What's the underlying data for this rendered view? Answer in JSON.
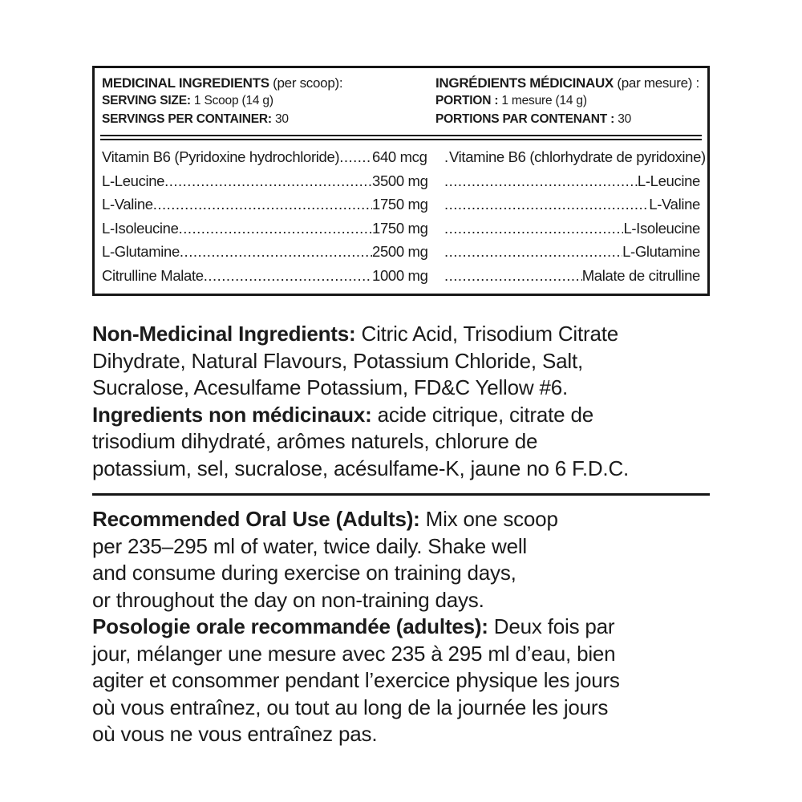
{
  "panel": {
    "header": {
      "en": {
        "title_bold": "MEDICINAL INGREDIENTS",
        "title_rest": " (per scoop):",
        "serving_size_label": "SERVING SIZE:",
        "serving_size_value": " 1 Scoop (14 g)",
        "servings_label": "SERVINGS PER CONTAINER:",
        "servings_value": " 30"
      },
      "fr": {
        "title_bold": "INGRÉDIENTS MÉDICINAUX",
        "title_rest": " (par mesure) :",
        "serving_size_label": "PORTION :",
        "serving_size_value": " 1 mesure (14 g)",
        "servings_label": "PORTIONS PAR CONTENANT :",
        "servings_value": " 30"
      }
    },
    "table": {
      "rows": [
        {
          "en": "Vitamin B6 (Pyridoxine hydrochloride)",
          "amount": "640 mcg",
          "fr": "Vitamine B6 (chlorhydrate de pyridoxine)"
        },
        {
          "en": "L-Leucine",
          "amount": "3500 mg",
          "fr": "L-Leucine"
        },
        {
          "en": "L-Valine",
          "amount": "1750 mg",
          "fr": "L-Valine"
        },
        {
          "en": "L-Isoleucine",
          "amount": "1750 mg",
          "fr": "L-Isoleucine"
        },
        {
          "en": "L-Glutamine",
          "amount": "2500 mg",
          "fr": "L-Glutamine"
        },
        {
          "en": "Citrulline Malate",
          "amount": "1000 mg",
          "fr": "Malate de citrulline"
        }
      ]
    }
  },
  "paragraphs": [
    {
      "id": "non-medicinal",
      "lines": [
        [
          {
            "t": "Non-Medicinal Ingredients:",
            "b": true
          },
          {
            "t": " Citric Acid, Trisodium Citrate"
          }
        ],
        [
          {
            "t": "Dihydrate, Natural Flavours, Potassium Chloride, Salt,"
          }
        ],
        [
          {
            "t": "Sucralose, Acesulfame Potassium, FD&C Yellow #6."
          }
        ],
        [
          {
            "t": "Ingredients non médicinaux:",
            "b": true
          },
          {
            "t": " acide citrique, citrate de"
          }
        ],
        [
          {
            "t": "trisodium dihydraté, arômes naturels, chlorure de"
          }
        ],
        [
          {
            "t": "potassium, sel, sucralose, acésulfame-K, jaune no 6 F.D.C."
          }
        ]
      ]
    },
    {
      "id": "oral-use",
      "lines": [
        [
          {
            "t": "Recommended Oral Use (Adults):",
            "b": true
          },
          {
            "t": " Mix one scoop"
          }
        ],
        [
          {
            "t": "per 235–295 ml of water, twice daily. Shake well"
          }
        ],
        [
          {
            "t": "and consume during exercise on training days,"
          }
        ],
        [
          {
            "t": "or throughout the day on non-training days."
          }
        ],
        [
          {
            "t": "Posologie orale recommandée (adultes):",
            "b": true
          },
          {
            "t": " Deux fois par"
          }
        ],
        [
          {
            "t": "jour, mélanger une mesure avec 235 à 295 ml d’eau, bien"
          }
        ],
        [
          {
            "t": "agiter et consommer pendant l’exercice physique les jours"
          }
        ],
        [
          {
            "t": "où vous entraînez, ou tout au long de la journée les jours"
          }
        ],
        [
          {
            "t": "où vous ne vous entraînez pas."
          }
        ]
      ]
    }
  ],
  "colors": {
    "text": "#1b1b1b",
    "border": "#161616",
    "background": "#ffffff"
  }
}
